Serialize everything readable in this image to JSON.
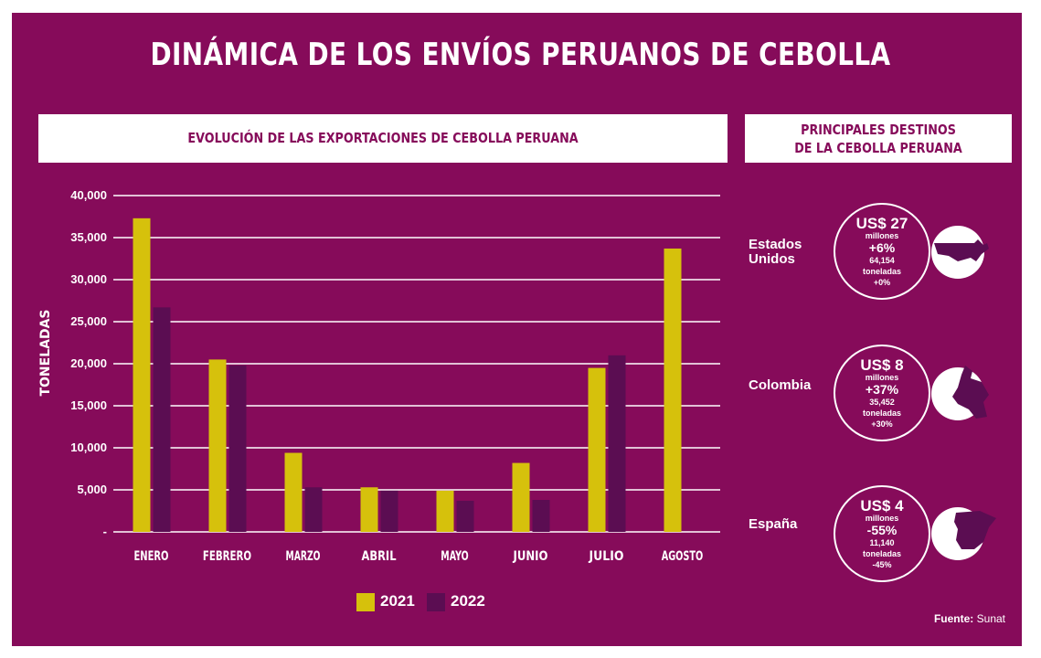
{
  "title": "DINÁMICA DE LOS ENVÍOS PERUANOS DE CEBOLLA",
  "chart_header": "EVOLUCIÓN DE LAS EXPORTACIONES DE CEBOLLA PERUANA",
  "destinations_header": [
    "PRINCIPALES DESTINOS",
    "DE LA CEBOLLA PERUANA"
  ],
  "colors": {
    "background": "#860b5a",
    "series_2021": "#d6c10c",
    "series_2022": "#5b0d52"
  },
  "chart_data": {
    "type": "bar",
    "ylabel": "TONELADAS",
    "categories": [
      "ENERO",
      "FEBRERO",
      "MARZO",
      "ABRIL",
      "MAYO",
      "JUNIO",
      "JULIO",
      "AGOSTO"
    ],
    "series": [
      {
        "name": "2021",
        "values": [
          37300,
          20500,
          9400,
          5300,
          4900,
          8200,
          19500,
          33700
        ]
      },
      {
        "name": "2022",
        "values": [
          26700,
          19800,
          5300,
          4900,
          3700,
          3800,
          21000,
          null
        ]
      }
    ],
    "yticks": [
      "-",
      "5,000",
      "10,000",
      "15,000",
      "20,000",
      "25,000",
      "30,000",
      "35,000",
      "40,000"
    ],
    "ylim": [
      0,
      40000
    ],
    "grid": true,
    "legend": "bottom"
  },
  "destinations": [
    {
      "country": [
        "Estados",
        "Unidos"
      ],
      "amount": "US$ 27",
      "unit": "millones",
      "change": "+6%",
      "tons": "64,154",
      "tons_unit": "toneladas",
      "tons_change": "+0%",
      "icon": "usa-map-icon"
    },
    {
      "country": [
        "Colombia"
      ],
      "amount": "US$ 8",
      "unit": "millones",
      "change": "+37%",
      "tons": "35,452",
      "tons_unit": "toneladas",
      "tons_change": "+30%",
      "icon": "colombia-map-icon"
    },
    {
      "country": [
        "España"
      ],
      "amount": "US$ 4",
      "unit": "millones",
      "change": "-55%",
      "tons": "11,140",
      "tons_unit": "toneladas",
      "tons_change": "-45%",
      "icon": "spain-map-icon"
    }
  ],
  "source_label": "Fuente:",
  "source_value": "Sunat"
}
